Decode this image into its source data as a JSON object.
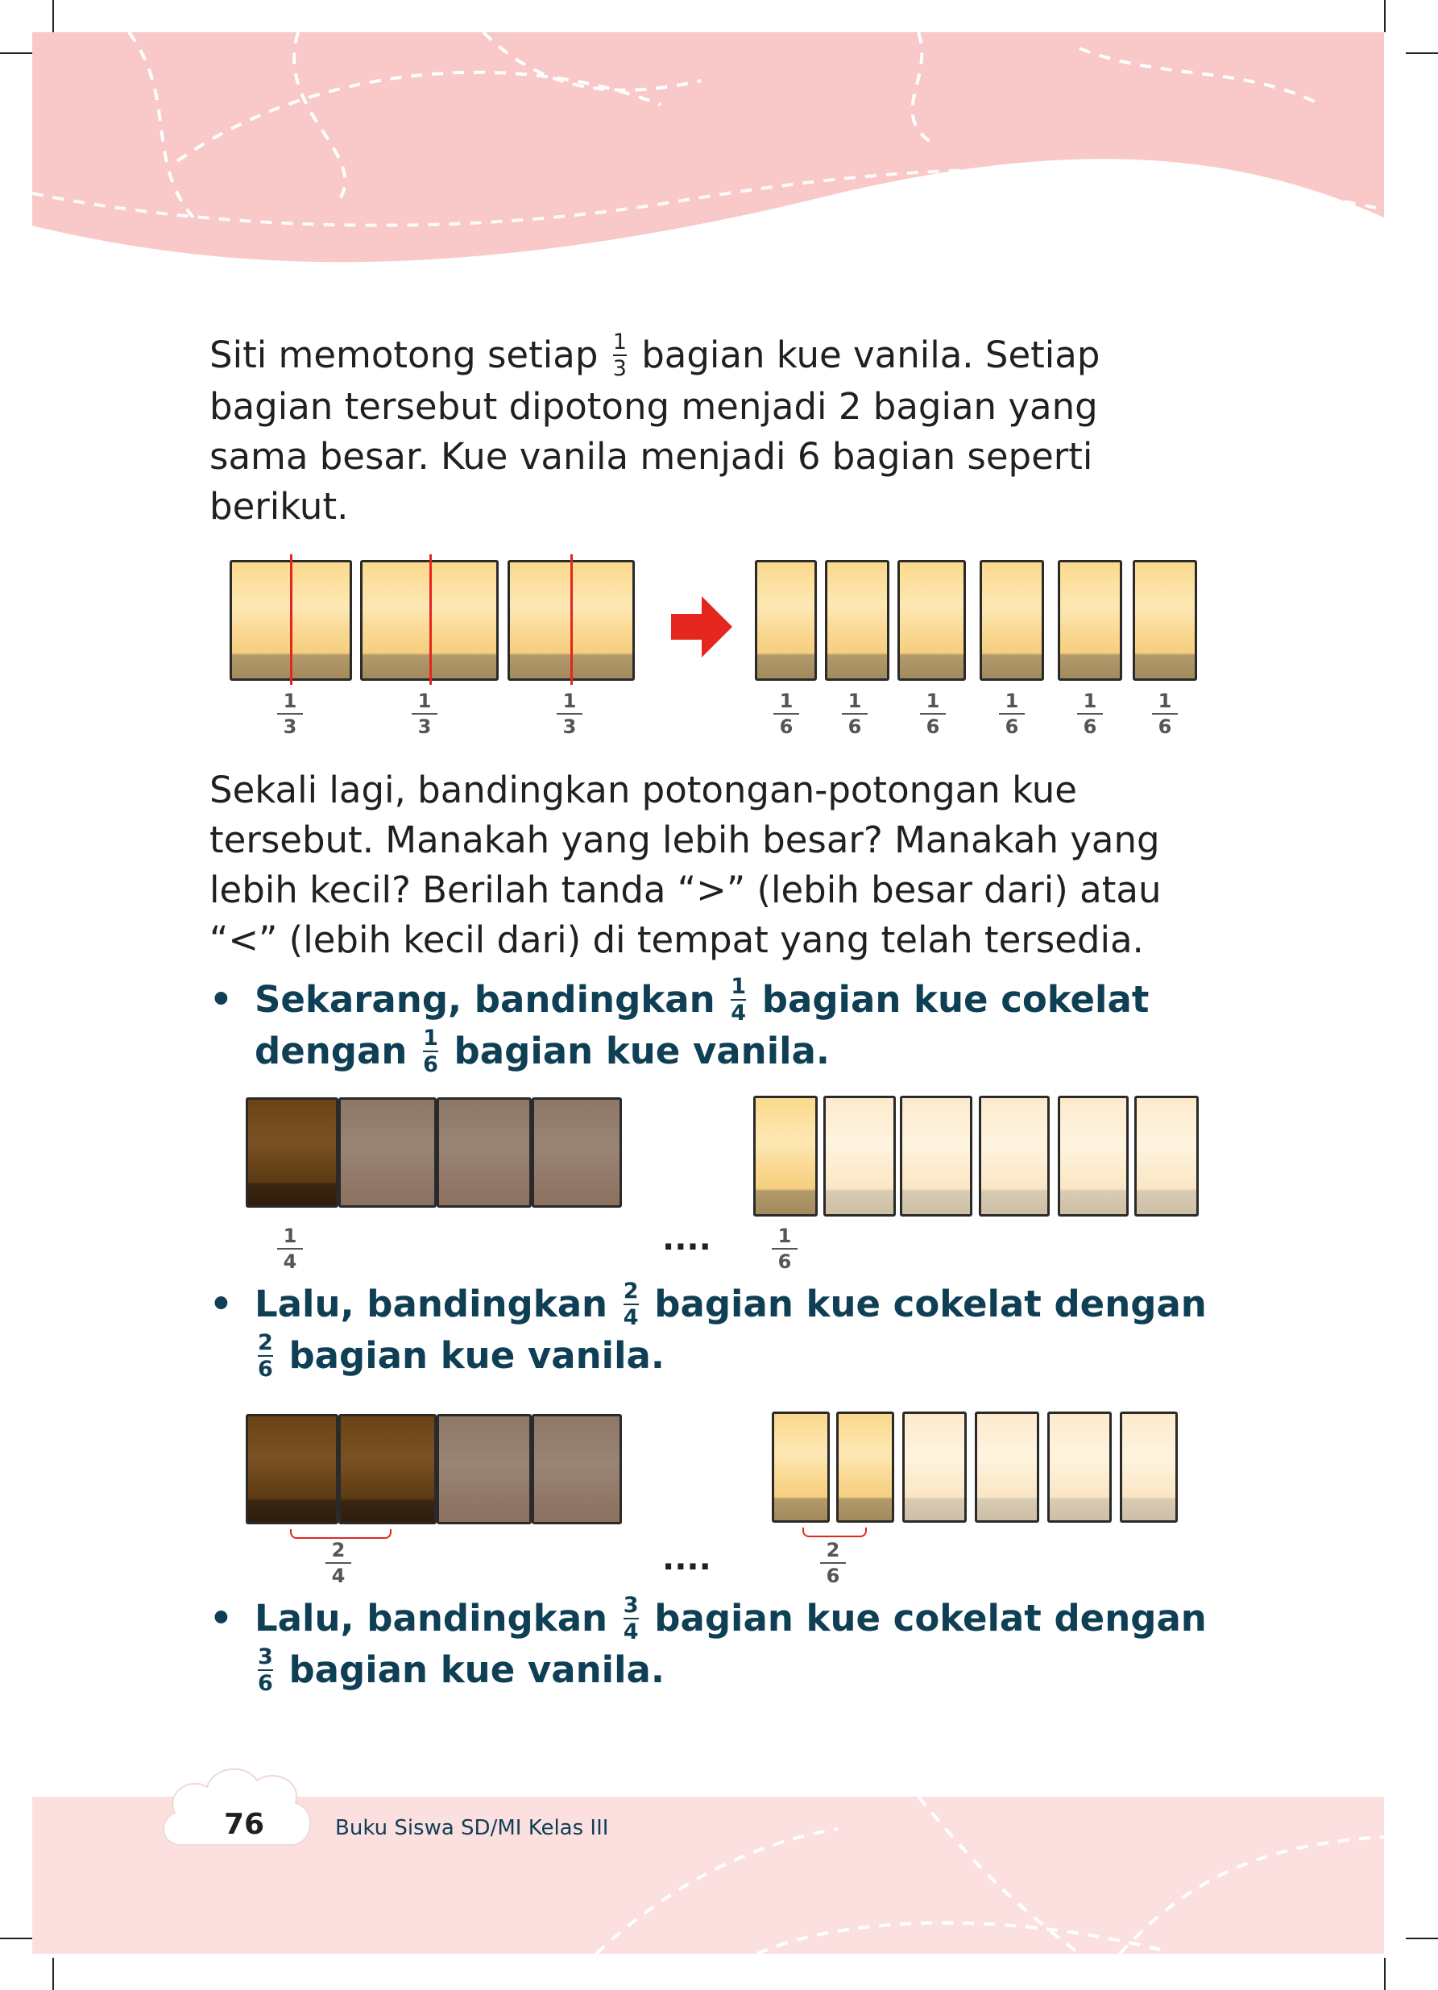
{
  "intro": {
    "before": "Siti memotong setiap",
    "frac": {
      "num": "1",
      "den": "3"
    },
    "after": "bagian kue vanila. Setiap",
    "line2": "bagian tersebut dipotong menjadi 2 bagian yang",
    "line3": "sama besar. Kue vanila menjadi 6 bagian seperti",
    "line4": "berikut."
  },
  "figure1": {
    "thirds_label": {
      "num": "1",
      "den": "3"
    },
    "sixths_label": {
      "num": "1",
      "den": "6"
    },
    "thirds_count": 3,
    "sixths_count": 6,
    "arrow_icon": "right-arrow-icon",
    "cut_color": "#e5261f"
  },
  "compare": {
    "line1": "Sekali lagi, bandingkan potongan-potongan kue",
    "line2": "tersebut. Manakah yang lebih besar? Manakah yang",
    "line3": "lebih kecil? Berilah tanda “>” (lebih besar dari) atau",
    "line4": "“<” (lebih kecil dari) di tempat yang telah tersedia."
  },
  "bullets": [
    {
      "bullet": "•",
      "l1_before": "Sekarang,  bandingkan",
      "l1_frac": {
        "num": "1",
        "den": "4"
      },
      "l1_after": "bagian kue cokelat",
      "l2_before": "dengan",
      "l2_frac": {
        "num": "1",
        "den": "6"
      },
      "l2_after": "bagian kue vanila."
    },
    {
      "bullet": "•",
      "l1_before": "Lalu, bandingkan",
      "l1_frac": {
        "num": "2",
        "den": "4"
      },
      "l1_after": "bagian kue cokelat dengan",
      "l2_frac": {
        "num": "2",
        "den": "6"
      },
      "l2_after": "bagian kue vanila."
    },
    {
      "bullet": "•",
      "l1_before": "Lalu, bandingkan",
      "l1_frac": {
        "num": "3",
        "den": "4"
      },
      "l1_after": "bagian kue cokelat dengan",
      "l2_frac": {
        "num": "3",
        "den": "6"
      },
      "l2_after": "bagian kue vanila."
    }
  ],
  "figure2": {
    "choco_label": {
      "num": "1",
      "den": "4"
    },
    "vanilla_label": {
      "num": "1",
      "den": "6"
    },
    "blank": "....",
    "choco_shaded": 1,
    "choco_total": 4,
    "vanilla_shaded": 1,
    "vanilla_total": 6
  },
  "figure3": {
    "choco_label": {
      "num": "2",
      "den": "4"
    },
    "vanilla_label": {
      "num": "2",
      "den": "6"
    },
    "blank": "....",
    "choco_shaded": 2,
    "choco_total": 4,
    "vanilla_shaded": 2,
    "vanilla_total": 6
  },
  "footer": {
    "page_number": "76",
    "book_title": "Buku Siswa SD/MI Kelas III",
    "bg_color": "#fce0df"
  },
  "header": {
    "bg_color": "#f8c9c8"
  }
}
